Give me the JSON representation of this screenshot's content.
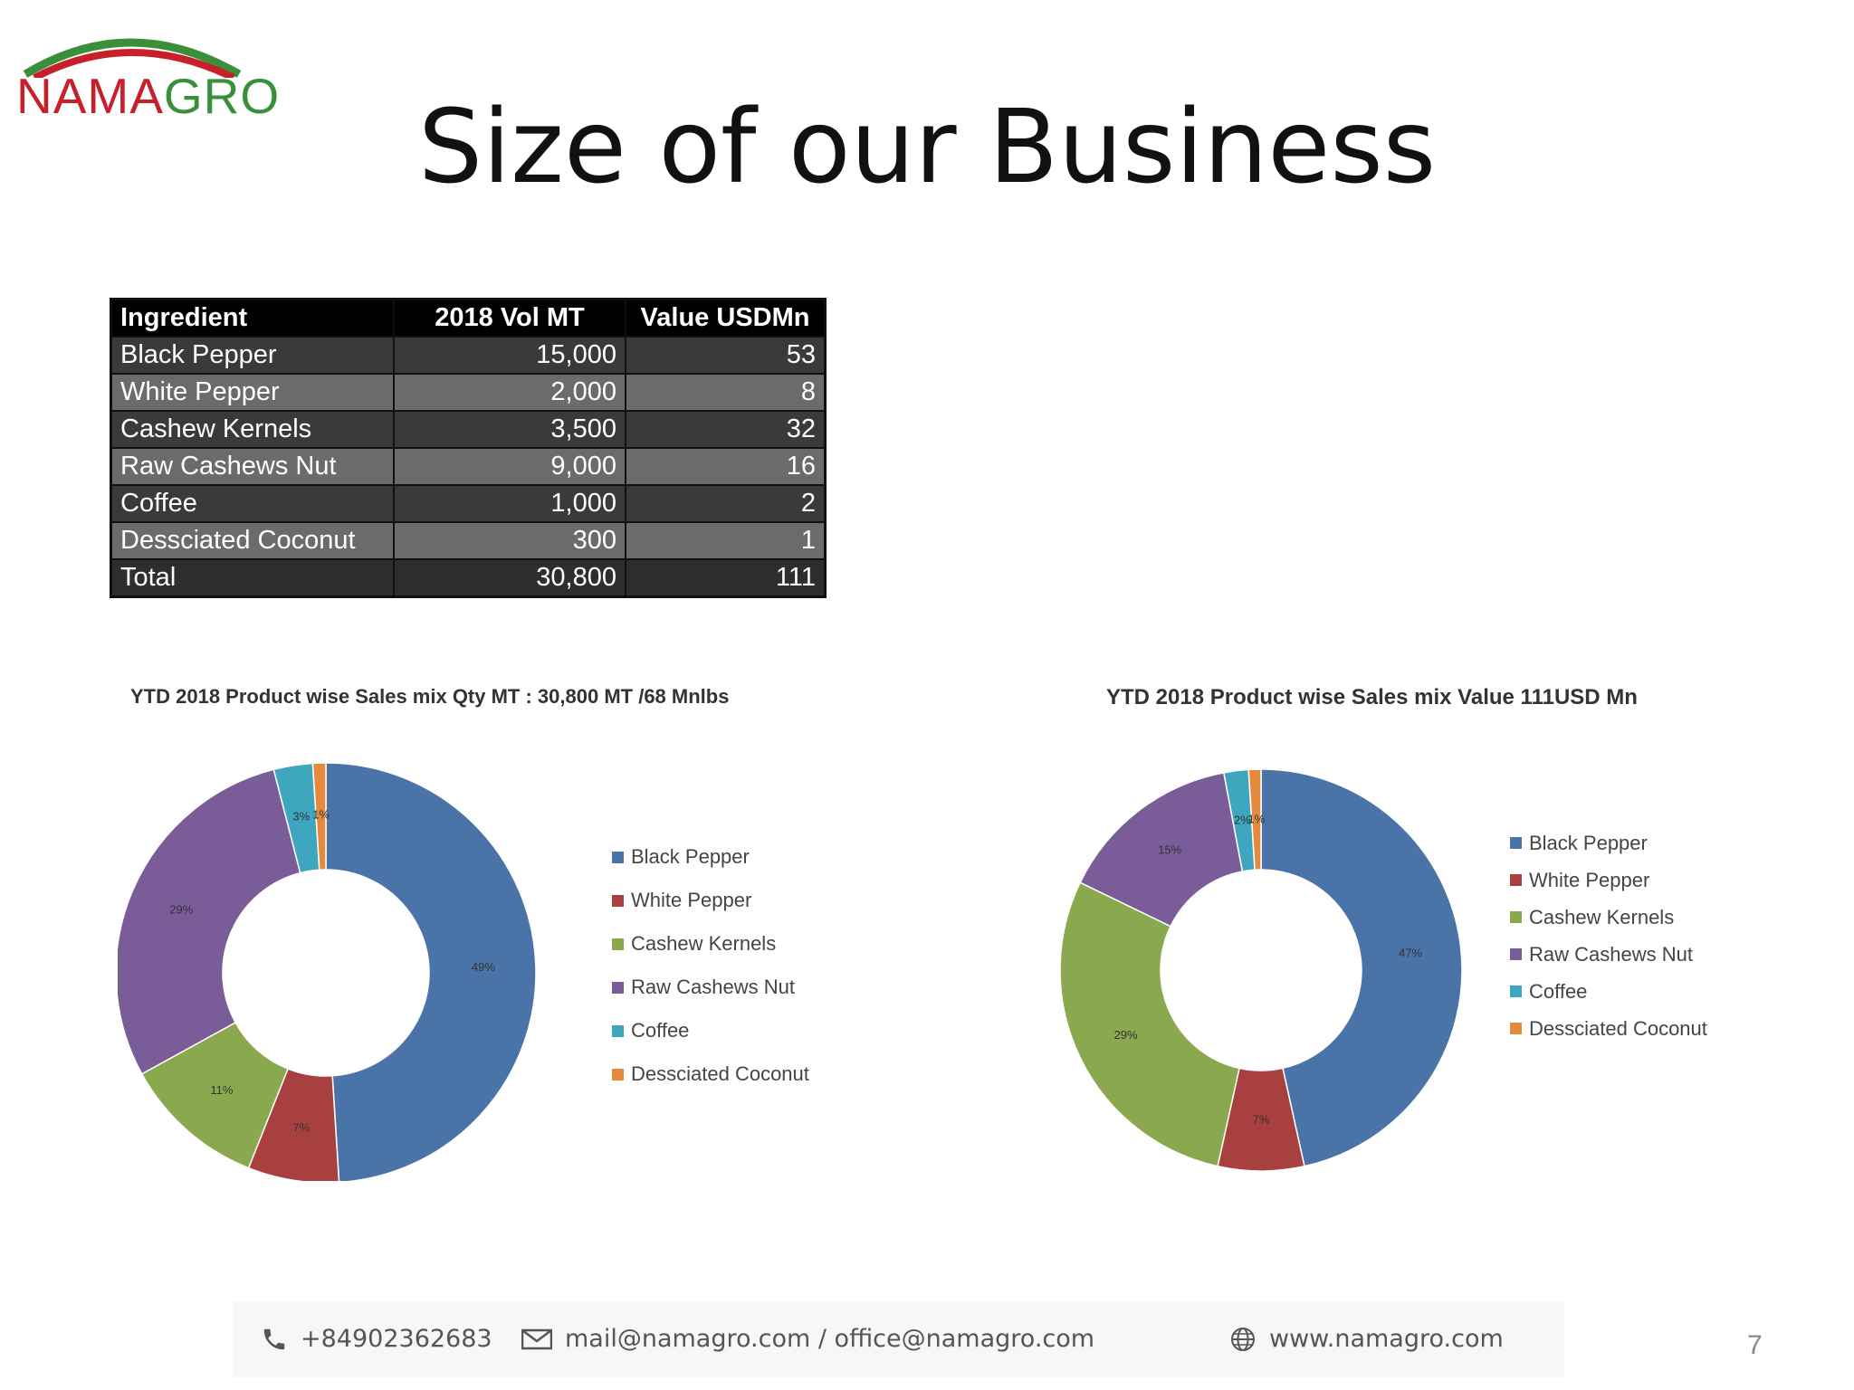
{
  "logo": {
    "name_part1": "NAMA",
    "name_part2": "GRO"
  },
  "title": "Size of our Business",
  "table": {
    "headers": [
      "Ingredient",
      "2018 Vol MT",
      "Value USDMn"
    ],
    "rows": [
      [
        "Black Pepper",
        "15,000",
        "53"
      ],
      [
        "White Pepper",
        "2,000",
        "8"
      ],
      [
        "Cashew Kernels",
        "3,500",
        "32"
      ],
      [
        "Raw Cashews Nut",
        "9,000",
        "16"
      ],
      [
        "Coffee",
        "1,000",
        "2"
      ],
      [
        "Dessciated Coconut",
        "300",
        "1"
      ]
    ],
    "total": [
      "Total",
      "30,800",
      "111"
    ]
  },
  "colors": {
    "Black Pepper": "#4a74a8",
    "White Pepper": "#a84040",
    "Cashew Kernels": "#8aa94e",
    "Raw Cashews Nut": "#7a5c98",
    "Coffee": "#3ea7bf",
    "Dessciated Coconut": "#e48a3c"
  },
  "chart_data": [
    {
      "type": "pie",
      "title": "YTD 2018 Product wise Sales mix Qty MT : 30,800 MT /68 Mnlbs",
      "categories": [
        "Black Pepper",
        "White Pepper",
        "Cashew Kernels",
        "Raw Cashews Nut",
        "Coffee",
        "Dessciated Coconut"
      ],
      "values": [
        49,
        7,
        11,
        29,
        3,
        1
      ],
      "labels": [
        "49%",
        "7%",
        "11%",
        "29%",
        "3%",
        "1%"
      ],
      "legend": "right",
      "donut": true
    },
    {
      "type": "pie",
      "title": "YTD 2018 Product wise Sales mix Value 111USD Mn",
      "categories": [
        "Black Pepper",
        "White Pepper",
        "Cashew Kernels",
        "Raw Cashews Nut",
        "Coffee",
        "Dessciated Coconut"
      ],
      "values": [
        47,
        7,
        29,
        15,
        2,
        1
      ],
      "labels": [
        "47%",
        "7%",
        "29%",
        "15%",
        "2%",
        "1%"
      ],
      "legend": "right",
      "donut": true
    }
  ],
  "footer": {
    "phone": "+84902362683",
    "email": "mail@namagro.com / office@namagro.com",
    "website": "www.namagro.com",
    "phone_icon": "phone-icon",
    "email_icon": "envelope-icon",
    "web_icon": "globe-icon"
  },
  "page_number": "7"
}
